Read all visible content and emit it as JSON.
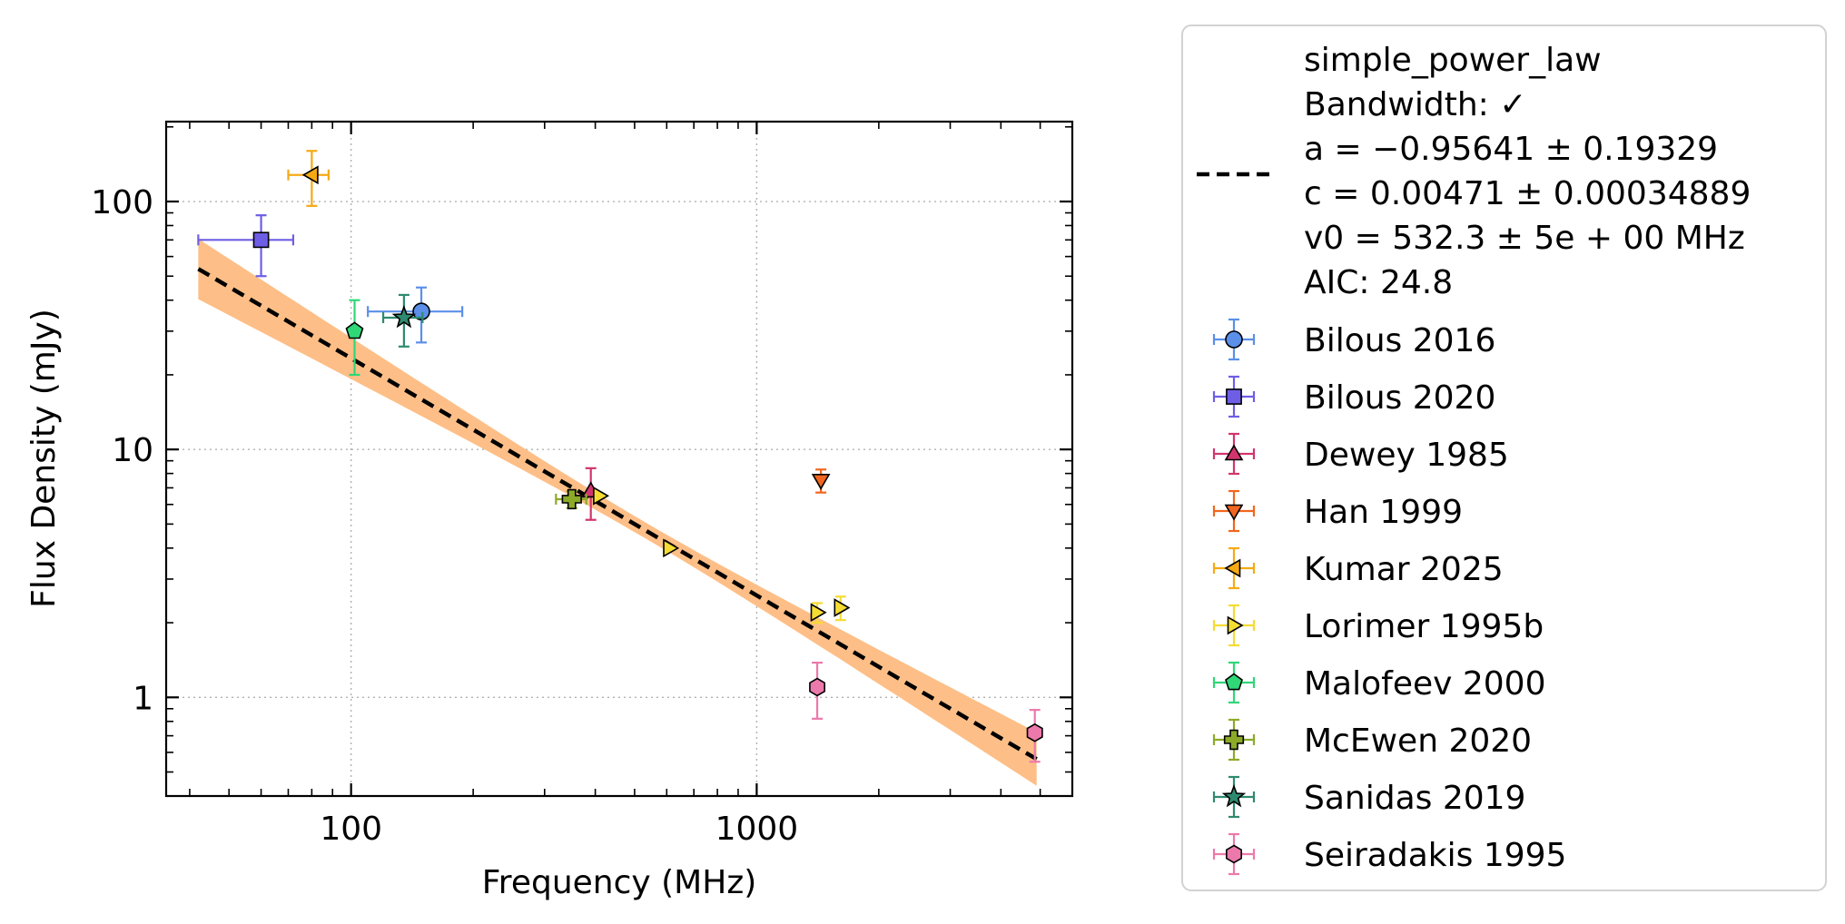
{
  "chart_data": {
    "type": "scatter",
    "xlabel": "Frequency (MHz)",
    "ylabel": "Flux Density (mJy)",
    "x_scale": "log",
    "y_scale": "log",
    "xlim": [
      35,
      6000
    ],
    "ylim": [
      0.4,
      210
    ],
    "grid": true,
    "legend_placement": "right, outside plot area",
    "x_ticks": [
      {
        "value": 100,
        "label": "100"
      },
      {
        "value": 1000,
        "label": "1000"
      }
    ],
    "y_ticks": [
      {
        "value": 1,
        "label": "1"
      },
      {
        "value": 10,
        "label": "10"
      },
      {
        "value": 100,
        "label": "100"
      }
    ],
    "fit": {
      "model": "simple_power_law",
      "legend_lines": [
        "simple_power_law",
        "Bandwidth: ✓",
        "a = −0.95641 ± 0.19329",
        "c = 0.00471 ± 0.00034889",
        "v0 = 532.3 ± 5e + 00 MHz",
        "AIC: 24.8"
      ],
      "a": -0.95641,
      "a_err": 0.19329,
      "c": 0.00471,
      "c_err": 0.00034889,
      "v0": 532.3,
      "v0_err": 5,
      "aic": 24.8,
      "x_range": [
        42,
        4900
      ],
      "line_color": "#000000",
      "band_color": "#fdbf87"
    },
    "series": [
      {
        "name": "Bilous 2016",
        "marker": "circle",
        "color": "#5b8fe8",
        "points": [
          {
            "x": 149,
            "y": 36,
            "xerr_lo": 39,
            "xerr_hi": 39,
            "yerr_lo": 9,
            "yerr_hi": 9
          }
        ]
      },
      {
        "name": "Bilous 2020",
        "marker": "square",
        "color": "#6e5ee6",
        "points": [
          {
            "x": 60,
            "y": 70,
            "xerr_lo": 18,
            "xerr_hi": 12,
            "yerr_lo": 20,
            "yerr_hi": 18
          }
        ]
      },
      {
        "name": "Dewey 1985",
        "marker": "triangle-up",
        "color": "#d2356e",
        "points": [
          {
            "x": 390,
            "y": 6.8,
            "xerr_lo": 0,
            "xerr_hi": 0,
            "yerr_lo": 1.6,
            "yerr_hi": 1.6
          }
        ]
      },
      {
        "name": "Han 1999",
        "marker": "triangle-down",
        "color": "#f0661e",
        "points": [
          {
            "x": 1440,
            "y": 7.5,
            "xerr_lo": 0,
            "xerr_hi": 0,
            "yerr_lo": 0.8,
            "yerr_hi": 0.8
          }
        ]
      },
      {
        "name": "Kumar 2025",
        "marker": "triangle-left",
        "color": "#f5aa14",
        "points": [
          {
            "x": 80,
            "y": 128,
            "xerr_lo": 10,
            "xerr_hi": 8,
            "yerr_lo": 32,
            "yerr_hi": 32
          }
        ]
      },
      {
        "name": "Lorimer 1995b",
        "marker": "triangle-right",
        "color": "#f5dc32",
        "points": [
          {
            "x": 410,
            "y": 6.5,
            "xerr_lo": 0,
            "xerr_hi": 0,
            "yerr_lo": 0,
            "yerr_hi": 0
          },
          {
            "x": 610,
            "y": 4.0,
            "xerr_lo": 0,
            "xerr_hi": 0,
            "yerr_lo": 0,
            "yerr_hi": 0
          },
          {
            "x": 1410,
            "y": 2.2,
            "xerr_lo": 0,
            "xerr_hi": 0,
            "yerr_lo": 0.2,
            "yerr_hi": 0.2
          },
          {
            "x": 1610,
            "y": 2.3,
            "xerr_lo": 0,
            "xerr_hi": 0,
            "yerr_lo": 0.25,
            "yerr_hi": 0.25
          }
        ]
      },
      {
        "name": "Malofeev 2000",
        "marker": "pentagon",
        "color": "#2fd777",
        "points": [
          {
            "x": 102,
            "y": 30,
            "xerr_lo": 0,
            "xerr_hi": 0,
            "yerr_lo": 10,
            "yerr_hi": 10
          }
        ]
      },
      {
        "name": "McEwen 2020",
        "marker": "plus",
        "color": "#8caa28",
        "points": [
          {
            "x": 350,
            "y": 6.3,
            "xerr_lo": 30,
            "xerr_hi": 30,
            "yerr_lo": 0.5,
            "yerr_hi": 0.5
          }
        ]
      },
      {
        "name": "Sanidas 2019",
        "marker": "star",
        "color": "#2e8a6f",
        "points": [
          {
            "x": 135,
            "y": 34,
            "xerr_lo": 15,
            "xerr_hi": 15,
            "yerr_lo": 8,
            "yerr_hi": 8
          }
        ]
      },
      {
        "name": "Seiradakis 1995",
        "marker": "hexagon",
        "color": "#ec79ab",
        "points": [
          {
            "x": 1410,
            "y": 1.1,
            "xerr_lo": 0,
            "xerr_hi": 0,
            "yerr_lo": 0.28,
            "yerr_hi": 0.28
          },
          {
            "x": 4850,
            "y": 0.72,
            "xerr_lo": 0,
            "xerr_hi": 0,
            "yerr_lo": 0.17,
            "yerr_hi": 0.17
          }
        ]
      }
    ]
  }
}
